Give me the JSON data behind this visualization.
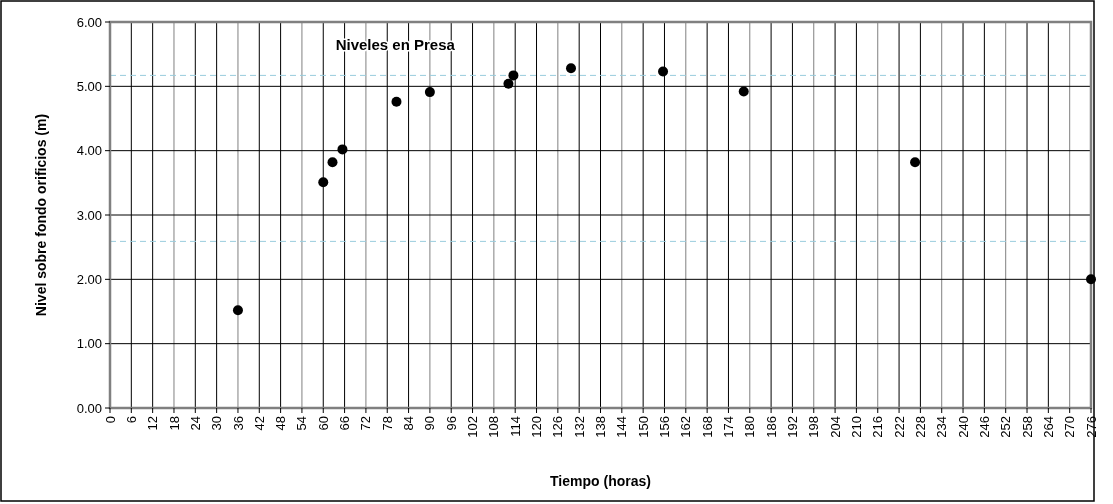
{
  "chart_data": {
    "type": "scatter",
    "title": "Niveles en Presa",
    "xlabel": "Tiempo (horas)",
    "ylabel": "Nivel sobre fondo orificios (m)",
    "x": [
      36,
      60,
      62.6,
      65.4,
      80.6,
      90,
      112.1,
      113.5,
      129.7,
      155.6,
      178.3,
      226.5,
      276
    ],
    "series": [
      {
        "color": "#000000",
        "values": [
          1.52,
          3.51,
          3.82,
          4.02,
          4.76,
          4.91,
          5.04,
          5.17,
          5.28,
          5.23,
          4.92,
          3.82,
          2.0
        ]
      }
    ],
    "xlim": [
      0,
      276
    ],
    "xticks": [
      0,
      6,
      12,
      18,
      24,
      30,
      36,
      42,
      48,
      54,
      60,
      66,
      72,
      78,
      84,
      90,
      96,
      102,
      108,
      114,
      120,
      126,
      132,
      138,
      144,
      150,
      156,
      162,
      168,
      174,
      180,
      186,
      192,
      198,
      204,
      210,
      216,
      222,
      228,
      234,
      240,
      246,
      252,
      258,
      264,
      270,
      276
    ],
    "ylim": [
      0,
      6
    ],
    "yticks": [
      {
        "value": 0,
        "label": "0.00"
      },
      {
        "value": 1,
        "label": "1.00"
      },
      {
        "value": 2,
        "label": "2.00"
      },
      {
        "value": 3,
        "label": "3.00"
      },
      {
        "value": 4,
        "label": "4.00"
      },
      {
        "value": 5,
        "label": "5.00"
      },
      {
        "value": 6,
        "label": "6.00"
      }
    ],
    "grid": true,
    "marker": "circle",
    "ref_lines": [
      {
        "axis": "y",
        "value": 5.17,
        "color": "#99ccdd",
        "line_style": "dashed"
      },
      {
        "axis": "y",
        "value": 2.59,
        "color": "#99ccdd",
        "line_style": "dashed"
      }
    ]
  }
}
